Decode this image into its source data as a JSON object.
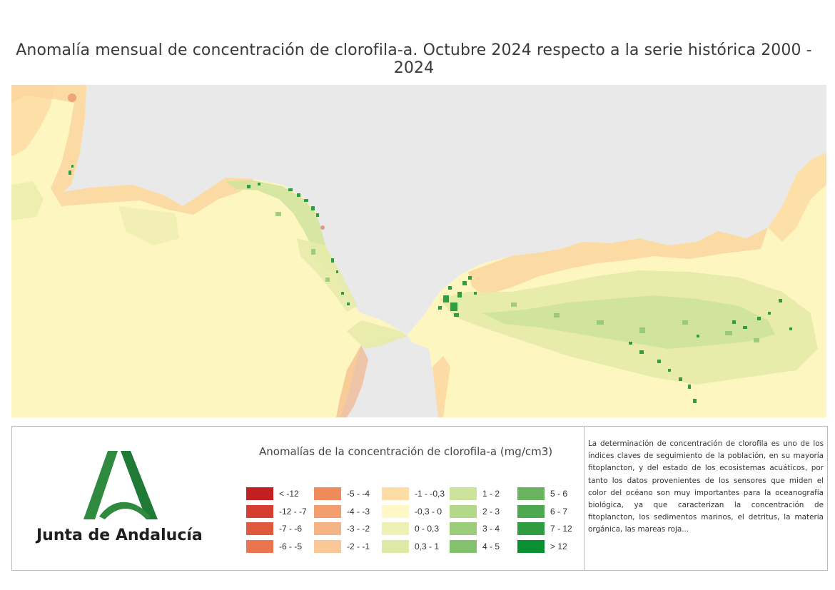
{
  "title": "Anomalía mensual de concentración de clorofila-a. Octubre 2024 respecto a la serie histórica 2000 - 2024",
  "colors": {
    "land": "#e9e9e9",
    "sea_base": "#fef6c0",
    "coast_light_orange": "#fcd59e",
    "coast_orange": "#f3a874",
    "coast_red": "#e0624a",
    "pale_green": "#e7ebaa",
    "light_green": "#cde39b",
    "mid_green": "#8cc56c",
    "dark_green": "#2f9e40",
    "brand_green": "#2f8a3f"
  },
  "branding": {
    "logo_icon": "junta-de-andalucia-logo-icon",
    "name": "Junta de Andalucía"
  },
  "legend": {
    "title": "Anomalías de la concentración de clorofila-a (mg/cm3)",
    "items": [
      {
        "label": "< -12",
        "color": "#c21f22"
      },
      {
        "label": "-12 - -7",
        "color": "#d53d2e"
      },
      {
        "label": "-7 - -6",
        "color": "#dd5a3c"
      },
      {
        "label": "-6 - -5",
        "color": "#e9744f"
      },
      {
        "label": "-5 - -4",
        "color": "#ef8a5a"
      },
      {
        "label": "-4 - -3",
        "color": "#f29e6e"
      },
      {
        "label": "-3 - -2",
        "color": "#f6b485"
      },
      {
        "label": "-2 - -1",
        "color": "#f9c896"
      },
      {
        "label": "-1 - -0,3",
        "color": "#fddda5"
      },
      {
        "label": "-0,3 - 0",
        "color": "#fff7c6"
      },
      {
        "label": "0 - 0,3",
        "color": "#eef0b5"
      },
      {
        "label": "0,3 - 1",
        "color": "#dfe9a5"
      },
      {
        "label": "1 - 2",
        "color": "#cbe39a"
      },
      {
        "label": "2 - 3",
        "color": "#b3d88a"
      },
      {
        "label": "3 - 4",
        "color": "#9ccd7b"
      },
      {
        "label": "4 - 5",
        "color": "#84c16c"
      },
      {
        "label": "5 - 6",
        "color": "#6bb45f"
      },
      {
        "label": "6 - 7",
        "color": "#4ea84f"
      },
      {
        "label": "7 - 12",
        "color": "#2f9c42"
      },
      {
        "label": "> 12",
        "color": "#0a8f33"
      }
    ]
  },
  "description": "La determinación de concentración de clorofila es uno de los índices claves de seguimiento de la población, en su mayoría fitoplancton, y del estado de los ecosistemas acuáticos, por tanto los datos provenientes de los sensores que miden el color del océano son muy importantes para la oceanografía biológica, ya que caracterizan la concentración de fitoplancton, los sedimentos marinos, el detritus, la materia orgánica, las mareas roja..."
}
